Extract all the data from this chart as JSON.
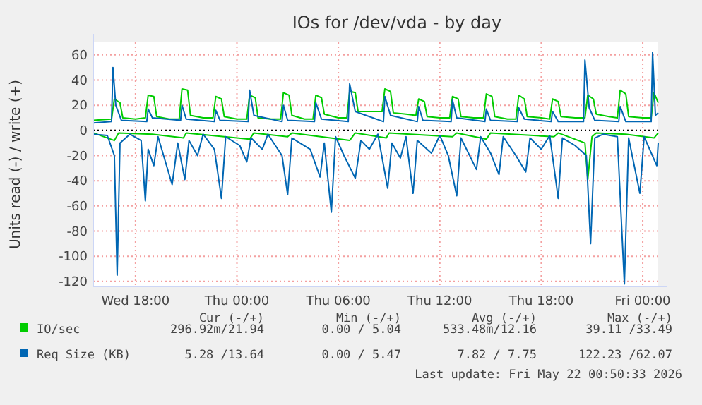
{
  "chart_data": {
    "type": "line",
    "title": "IOs for /dev/vda - by day",
    "ylabel": "Units read (-) / write (+)",
    "xlim": [
      "2026-05-20T15:30",
      "2026-05-22T00:55"
    ],
    "xticks": [
      {
        "value": "2026-05-20T18:00",
        "label": "Wed 18:00"
      },
      {
        "value": "2026-05-21T00:00",
        "label": "Thu 00:00"
      },
      {
        "value": "2026-05-21T06:00",
        "label": "Thu 06:00"
      },
      {
        "value": "2026-05-21T12:00",
        "label": "Thu 12:00"
      },
      {
        "value": "2026-05-21T18:00",
        "label": "Thu 18:00"
      },
      {
        "value": "2026-05-22T00:00",
        "label": "Fri 00:00"
      }
    ],
    "ylim": [
      -124,
      70
    ],
    "yticks": [
      -120,
      -100,
      -80,
      -60,
      -40,
      -20,
      0,
      20,
      40,
      60
    ],
    "grid": true,
    "legend": "bottom",
    "marker": "none",
    "line_style": "solid",
    "ref_lines": [
      {
        "axis": "y",
        "value": 0,
        "label": null,
        "color": "#000000",
        "line_style": "dotted"
      }
    ],
    "annotations": [
      "Cur (-/+)",
      "Min (-/+)",
      "Avg (-/+)",
      "Max (-/+)",
      "296.92m/21.94",
      "0.00 / 5.04",
      "533.48m/12.16",
      "39.11 /33.49",
      "5.28 /13.64",
      "0.00 / 5.47",
      "7.82 / 7.75",
      "122.23 /62.07",
      "Last update: Fri May 22 00:50:33 2026"
    ],
    "series": [
      {
        "color": "#00cc00",
        "x": [
          "2026-05-20T15:30",
          "2026-05-20T16:45",
          "2026-05-20T17:00",
          "2026-05-20T19:00",
          "2026-05-20T20:50",
          "2026-05-20T21:00",
          "2026-05-21T00:45",
          "2026-05-21T01:00",
          "2026-05-21T03:00",
          "2026-05-21T03:15",
          "2026-05-21T06:40",
          "2026-05-21T07:00",
          "2026-05-21T08:50",
          "2026-05-21T09:00",
          "2026-05-21T12:45",
          "2026-05-21T13:00",
          "2026-05-21T14:45",
          "2026-05-21T15:00",
          "2026-05-21T18:45",
          "2026-05-21T19:00",
          "2026-05-21T20:35",
          "2026-05-21T20:45",
          "2026-05-21T21:00",
          "2026-05-21T21:15",
          "2026-05-21T23:00",
          "2026-05-22T00:40",
          "2026-05-22T00:55"
        ],
        "values": [
          -2,
          -8,
          -2,
          -3,
          -6,
          -2,
          -7,
          -2,
          -5,
          -2,
          -8,
          -2,
          -6,
          -2,
          -5,
          -2,
          -7,
          -2,
          -5,
          -2,
          -10,
          -39,
          -5,
          -2,
          -3,
          -6,
          -2
        ]
      },
      {
        "name": "IO/sec",
        "color": "#00cc00",
        "x": [
          "2026-05-20T15:30",
          "2026-05-20T16:35",
          "2026-05-20T16:45",
          "2026-05-20T17:05",
          "2026-05-20T17:15",
          "2026-05-20T18:00",
          "2026-05-20T18:35",
          "2026-05-20T18:45",
          "2026-05-20T19:05",
          "2026-05-20T19:15",
          "2026-05-20T20:00",
          "2026-05-20T20:35",
          "2026-05-20T20:45",
          "2026-05-20T21:05",
          "2026-05-20T21:15",
          "2026-05-20T22:00",
          "2026-05-20T22:35",
          "2026-05-20T22:45",
          "2026-05-20T23:05",
          "2026-05-20T23:15",
          "2026-05-21T00:00",
          "2026-05-21T00:35",
          "2026-05-21T00:45",
          "2026-05-21T01:05",
          "2026-05-21T01:15",
          "2026-05-21T02:00",
          "2026-05-21T02:35",
          "2026-05-21T02:45",
          "2026-05-21T03:05",
          "2026-05-21T03:15",
          "2026-05-21T04:00",
          "2026-05-21T04:30",
          "2026-05-21T04:40",
          "2026-05-21T05:00",
          "2026-05-21T05:10",
          "2026-05-21T06:00",
          "2026-05-21T06:30",
          "2026-05-21T06:40",
          "2026-05-21T07:00",
          "2026-05-21T07:10",
          "2026-05-21T08:00",
          "2026-05-21T08:35",
          "2026-05-21T08:45",
          "2026-05-21T09:05",
          "2026-05-21T09:15",
          "2026-05-21T10:00",
          "2026-05-21T10:35",
          "2026-05-21T10:45",
          "2026-05-21T11:05",
          "2026-05-21T11:15",
          "2026-05-21T12:00",
          "2026-05-21T12:35",
          "2026-05-21T12:45",
          "2026-05-21T13:05",
          "2026-05-21T13:15",
          "2026-05-21T14:00",
          "2026-05-21T14:35",
          "2026-05-21T14:45",
          "2026-05-21T15:05",
          "2026-05-21T15:15",
          "2026-05-21T16:00",
          "2026-05-21T16:30",
          "2026-05-21T16:40",
          "2026-05-21T17:00",
          "2026-05-21T17:10",
          "2026-05-21T18:00",
          "2026-05-21T18:30",
          "2026-05-21T18:40",
          "2026-05-21T19:00",
          "2026-05-21T19:10",
          "2026-05-21T20:00",
          "2026-05-21T20:35",
          "2026-05-21T20:45",
          "2026-05-21T21:05",
          "2026-05-21T21:15",
          "2026-05-21T22:00",
          "2026-05-21T22:30",
          "2026-05-21T22:40",
          "2026-05-21T23:00",
          "2026-05-21T23:10",
          "2026-05-22T00:00",
          "2026-05-22T00:30",
          "2026-05-22T00:40",
          "2026-05-22T00:55"
        ],
        "values": [
          8,
          9,
          25,
          22,
          10,
          9,
          10,
          28,
          27,
          11,
          9,
          9,
          33,
          32,
          12,
          10,
          10,
          27,
          25,
          11,
          9,
          9,
          28,
          26,
          10,
          9,
          9,
          30,
          28,
          12,
          9,
          9,
          28,
          26,
          13,
          10,
          10,
          31,
          30,
          15,
          15,
          15,
          33,
          31,
          14,
          13,
          12,
          25,
          23,
          11,
          10,
          10,
          27,
          25,
          11,
          10,
          10,
          29,
          27,
          11,
          9,
          9,
          28,
          25,
          11,
          10,
          9,
          25,
          23,
          11,
          10,
          10,
          28,
          25,
          13,
          11,
          10,
          32,
          29,
          11,
          10,
          10,
          30,
          22
        ]
      },
      {
        "color": "#0066b3",
        "x": [
          "2026-05-20T15:30",
          "2026-05-20T16:20",
          "2026-05-20T16:45",
          "2026-05-20T16:55",
          "2026-05-20T17:05",
          "2026-05-20T17:40",
          "2026-05-20T18:20",
          "2026-05-20T18:35",
          "2026-05-20T18:45",
          "2026-05-20T19:05",
          "2026-05-20T19:20",
          "2026-05-20T20:10",
          "2026-05-20T20:30",
          "2026-05-20T20:55",
          "2026-05-20T21:10",
          "2026-05-20T21:40",
          "2026-05-20T22:00",
          "2026-05-20T22:40",
          "2026-05-20T23:05",
          "2026-05-20T23:20",
          "2026-05-21T00:10",
          "2026-05-21T00:35",
          "2026-05-21T00:50",
          "2026-05-21T01:30",
          "2026-05-21T01:50",
          "2026-05-21T02:40",
          "2026-05-21T03:00",
          "2026-05-21T03:15",
          "2026-05-21T04:20",
          "2026-05-21T04:55",
          "2026-05-21T05:10",
          "2026-05-21T05:35",
          "2026-05-21T05:50",
          "2026-05-21T06:20",
          "2026-05-21T07:00",
          "2026-05-21T07:20",
          "2026-05-21T07:50",
          "2026-05-21T08:20",
          "2026-05-21T08:55",
          "2026-05-21T09:10",
          "2026-05-21T09:40",
          "2026-05-21T10:00",
          "2026-05-21T10:25",
          "2026-05-21T10:40",
          "2026-05-21T11:30",
          "2026-05-21T12:00",
          "2026-05-21T12:30",
          "2026-05-21T13:00",
          "2026-05-21T13:15",
          "2026-05-21T14:10",
          "2026-05-21T14:25",
          "2026-05-21T15:00",
          "2026-05-21T15:30",
          "2026-05-21T15:45",
          "2026-05-21T16:30",
          "2026-05-21T17:05",
          "2026-05-21T17:20",
          "2026-05-21T18:00",
          "2026-05-21T18:30",
          "2026-05-21T19:00",
          "2026-05-21T19:15",
          "2026-05-21T20:00",
          "2026-05-21T20:40",
          "2026-05-21T20:55",
          "2026-05-21T21:10",
          "2026-05-21T21:40",
          "2026-05-21T22:30",
          "2026-05-21T22:55",
          "2026-05-21T23:10",
          "2026-05-21T23:50",
          "2026-05-22T00:05",
          "2026-05-22T00:50",
          "2026-05-22T00:55"
        ],
        "values": [
          -3,
          -4,
          -20,
          -115,
          -10,
          -3,
          -8,
          -56,
          -15,
          -28,
          -5,
          -43,
          -10,
          -39,
          -8,
          -20,
          -3,
          -15,
          -54,
          -5,
          -12,
          -25,
          -6,
          -15,
          -3,
          -20,
          -51,
          -6,
          -15,
          -37,
          -10,
          -65,
          -5,
          -20,
          -38,
          -8,
          -15,
          -3,
          -46,
          -10,
          -22,
          -5,
          -50,
          -8,
          -18,
          -4,
          -20,
          -52,
          -6,
          -31,
          -5,
          -18,
          -35,
          -5,
          -20,
          -33,
          -6,
          -15,
          -4,
          -54,
          -6,
          -12,
          -20,
          -90,
          -6,
          -3,
          -5,
          -122,
          -6,
          -50,
          -5,
          -28,
          -10
        ]
      },
      {
        "name": "Req Size (KB)",
        "color": "#0066b3",
        "x": [
          "2026-05-20T15:30",
          "2026-05-20T16:35",
          "2026-05-20T16:40",
          "2026-05-20T16:50",
          "2026-05-20T17:10",
          "2026-05-20T18:40",
          "2026-05-20T18:45",
          "2026-05-20T19:00",
          "2026-05-20T20:40",
          "2026-05-20T20:45",
          "2026-05-20T21:00",
          "2026-05-20T22:40",
          "2026-05-20T22:45",
          "2026-05-20T23:00",
          "2026-05-21T00:40",
          "2026-05-21T00:45",
          "2026-05-21T01:00",
          "2026-05-21T02:40",
          "2026-05-21T02:45",
          "2026-05-21T03:00",
          "2026-05-21T04:35",
          "2026-05-21T04:40",
          "2026-05-21T05:00",
          "2026-05-21T06:35",
          "2026-05-21T06:40",
          "2026-05-21T07:00",
          "2026-05-21T08:40",
          "2026-05-21T08:45",
          "2026-05-21T09:05",
          "2026-05-21T10:40",
          "2026-05-21T10:45",
          "2026-05-21T11:00",
          "2026-05-21T12:40",
          "2026-05-21T12:45",
          "2026-05-21T13:00",
          "2026-05-21T14:40",
          "2026-05-21T14:45",
          "2026-05-21T15:00",
          "2026-05-21T16:35",
          "2026-05-21T16:40",
          "2026-05-21T17:00",
          "2026-05-21T18:35",
          "2026-05-21T18:40",
          "2026-05-21T19:00",
          "2026-05-21T20:30",
          "2026-05-21T20:35",
          "2026-05-21T20:50",
          "2026-05-21T21:10",
          "2026-05-21T22:35",
          "2026-05-21T22:40",
          "2026-05-21T23:00",
          "2026-05-22T00:30",
          "2026-05-22T00:35",
          "2026-05-22T00:45",
          "2026-05-22T00:55"
        ],
        "values": [
          6,
          7,
          50,
          20,
          8,
          7,
          17,
          10,
          8,
          20,
          9,
          7,
          16,
          8,
          7,
          32,
          12,
          7,
          20,
          8,
          7,
          22,
          9,
          7,
          37,
          15,
          7,
          27,
          12,
          7,
          19,
          8,
          7,
          24,
          10,
          7,
          17,
          8,
          7,
          18,
          9,
          7,
          15,
          7,
          7,
          56,
          18,
          8,
          7,
          19,
          7,
          7,
          62,
          12,
          14
        ]
      }
    ]
  }
}
